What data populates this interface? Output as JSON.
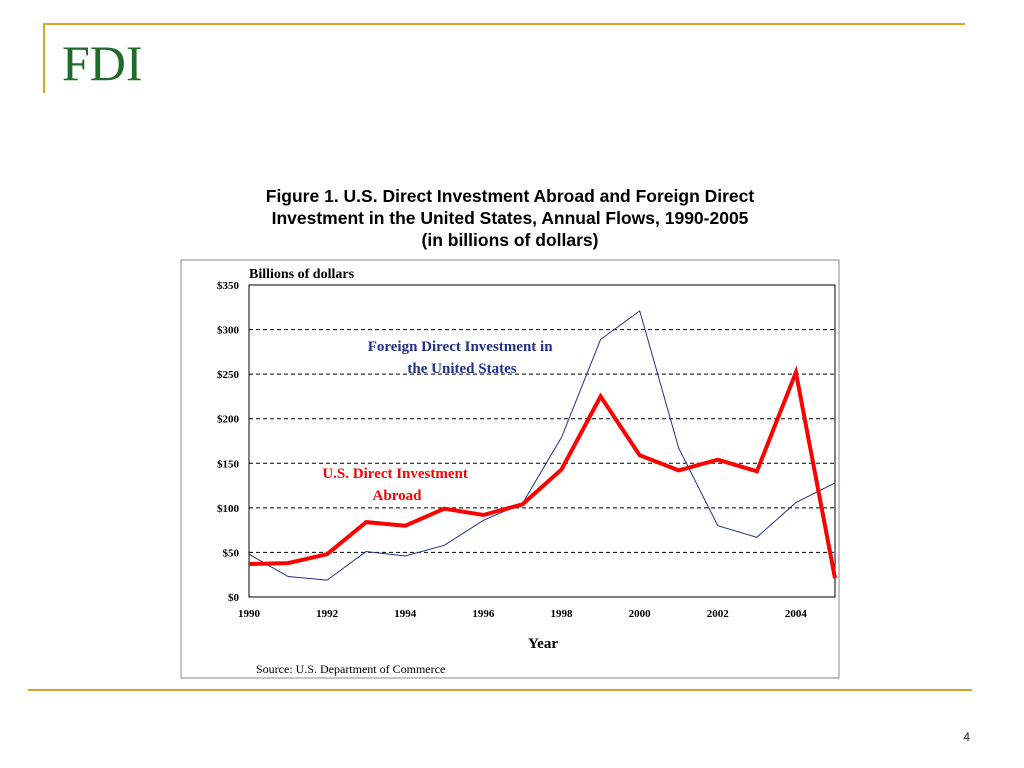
{
  "slide": {
    "title": "FDI",
    "page_number": "4"
  },
  "colors": {
    "frame_accent": "#d9a32a",
    "title": "#1f6b2c",
    "fdi_series": "#1f2f8a",
    "usdia_series": "#ff0000"
  },
  "chart_data": {
    "type": "line",
    "title_lines": [
      "Figure 1.  U.S. Direct Investment Abroad and Foreign Direct",
      "Investment in the United States, Annual Flows, 1990-2005",
      "(in billions of dollars)"
    ],
    "ylabel": "Billions of dollars",
    "xlabel": "Year",
    "source": "Source: U.S. Department of Commerce",
    "x": [
      1990,
      1991,
      1992,
      1993,
      1994,
      1995,
      1996,
      1997,
      1998,
      1999,
      2000,
      2001,
      2002,
      2003,
      2004,
      2005
    ],
    "xlim": [
      1990,
      2005
    ],
    "ylim": [
      0,
      350
    ],
    "x_ticks": [
      "1990",
      "1992",
      "1994",
      "1996",
      "1998",
      "2000",
      "2002",
      "2004"
    ],
    "y_ticks": [
      "$0",
      "$50",
      "$100",
      "$150",
      "$200",
      "$250",
      "$300",
      "$350"
    ],
    "grid": "horizontal dashed",
    "series": [
      {
        "name": "Foreign Direct Investment in the United States",
        "label_lines": [
          "Foreign Direct Investment in",
          "the United States"
        ],
        "values": [
          48,
          23,
          19,
          51,
          46,
          58,
          86,
          105,
          179,
          289,
          321,
          167,
          80,
          67,
          106,
          128
        ]
      },
      {
        "name": "U.S. Direct Investment Abroad",
        "label_lines": [
          "U.S. Direct Investment",
          "Abroad"
        ],
        "values": [
          37,
          38,
          48,
          84,
          80,
          99,
          92,
          104,
          143,
          225,
          159,
          142,
          154,
          141,
          252,
          21
        ]
      }
    ]
  }
}
